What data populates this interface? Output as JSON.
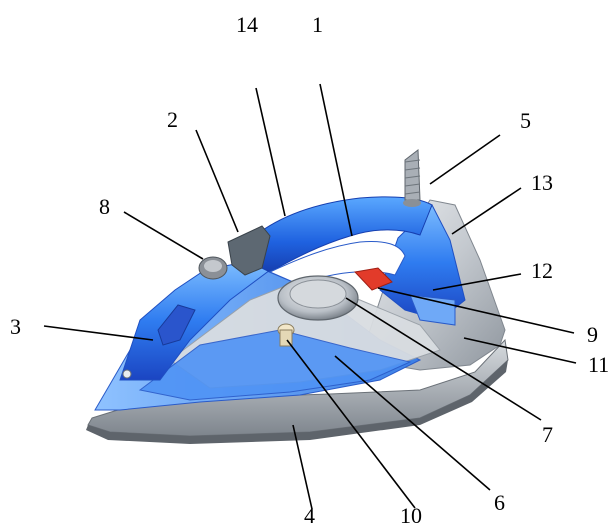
{
  "diagram": {
    "labels": [
      "14",
      "1",
      "2",
      "5",
      "8",
      "13",
      "12",
      "3",
      "9",
      "11",
      "7",
      "6",
      "4",
      "10"
    ],
    "colors": {
      "blue_dark": "#1e4fd6",
      "blue_mid": "#2f7cf0",
      "blue_light": "#6fb0ff",
      "silver": "#c9cdd2",
      "silver_dark": "#8d949c",
      "soleplate": "#a9b0b8",
      "red_button": "#e23b2a"
    }
  }
}
